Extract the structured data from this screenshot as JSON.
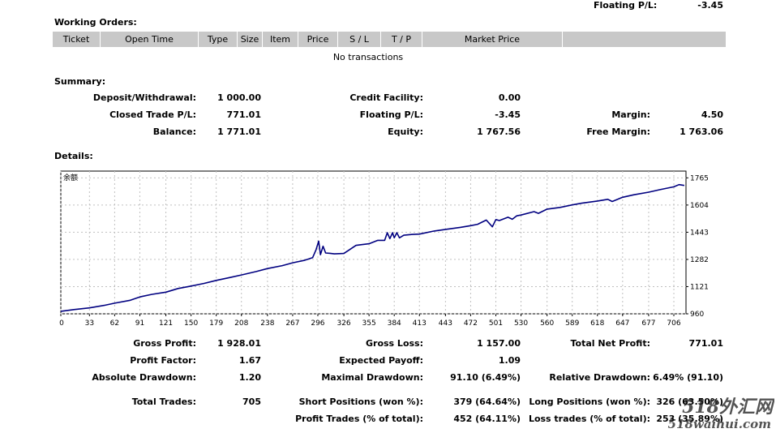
{
  "top": {
    "floating_label": "Floating P/L:",
    "floating_value": "-3.45"
  },
  "working_orders": {
    "title": "Working Orders:",
    "columns": [
      "Ticket",
      "Open Time",
      "Type",
      "Size",
      "Item",
      "Price",
      "S / L",
      "T / P",
      "Market Price",
      ""
    ],
    "empty_text": "No transactions"
  },
  "summary": {
    "title": "Summary:",
    "deposit_label": "Deposit/Withdrawal:",
    "deposit_value": "1 000.00",
    "credit_label": "Credit Facility:",
    "credit_value": "0.00",
    "closed_label": "Closed Trade P/L:",
    "closed_value": "771.01",
    "floating_label": "Floating P/L:",
    "floating_value": "-3.45",
    "margin_label": "Margin:",
    "margin_value": "4.50",
    "balance_label": "Balance:",
    "balance_value": "1 771.01",
    "equity_label": "Equity:",
    "equity_value": "1 767.56",
    "free_margin_label": "Free Margin:",
    "free_margin_value": "1 763.06"
  },
  "details": {
    "title": "Details:",
    "gross_profit_label": "Gross Profit:",
    "gross_profit_value": "1 928.01",
    "gross_loss_label": "Gross Loss:",
    "gross_loss_value": "1 157.00",
    "total_net_label": "Total Net Profit:",
    "total_net_value": "771.01",
    "profit_factor_label": "Profit Factor:",
    "profit_factor_value": "1.67",
    "expected_payoff_label": "Expected Payoff:",
    "expected_payoff_value": "1.09",
    "abs_dd_label": "Absolute Drawdown:",
    "abs_dd_value": "1.20",
    "max_dd_label": "Maximal Drawdown:",
    "max_dd_value": "91.10 (6.49%)",
    "rel_dd_label": "Relative Drawdown:",
    "rel_dd_value": "6.49% (91.10)",
    "total_trades_label": "Total Trades:",
    "total_trades_value": "705",
    "short_label": "Short Positions (won %):",
    "short_value": "379 (64.64%)",
    "long_label": "Long Positions (won %):",
    "long_value": "326 (63.50%)",
    "profit_trades_label": "Profit Trades (% of total):",
    "profit_trades_value": "452 (64.11%)",
    "loss_trades_label": "Loss trades (% of total):",
    "loss_trades_value": "253 (35.89%)"
  },
  "watermark": {
    "line1": "518外汇网",
    "line2": "518waihui.com"
  },
  "colors": {
    "line": "#000080",
    "grid": "#c0c0c0",
    "header_bg": "#c8c8c8"
  },
  "chart_data": {
    "type": "line",
    "title": "余额",
    "x_ticks": [
      0,
      33,
      62,
      91,
      121,
      150,
      179,
      208,
      238,
      267,
      296,
      326,
      355,
      384,
      413,
      443,
      472,
      501,
      530,
      560,
      589,
      618,
      647,
      677,
      706
    ],
    "y_ticks": [
      960,
      1121,
      1282,
      1443,
      1604,
      1765
    ],
    "xlim": [
      0,
      720
    ],
    "ylim": [
      960,
      1805
    ],
    "grid": true,
    "series": [
      {
        "x": [
          0,
          15,
          33,
          50,
          62,
          80,
          91,
          105,
          121,
          135,
          150,
          165,
          179,
          195,
          208,
          225,
          238,
          255,
          267,
          280,
          290,
          294,
          297,
          299,
          302,
          305,
          310,
          315,
          326,
          340,
          355,
          365,
          370,
          373,
          376,
          379,
          382,
          384,
          387,
          390,
          395,
          405,
          413,
          430,
          443,
          460,
          472,
          480,
          490,
          497,
          501,
          505,
          515,
          520,
          525,
          530,
          545,
          550,
          560,
          575,
          589,
          600,
          618,
          630,
          635,
          647,
          660,
          677,
          690,
          706,
          712,
          718
        ],
        "y": [
          975,
          985,
          995,
          1010,
          1023,
          1040,
          1060,
          1075,
          1088,
          1110,
          1124,
          1140,
          1158,
          1175,
          1190,
          1210,
          1228,
          1245,
          1262,
          1276,
          1292,
          1340,
          1390,
          1310,
          1360,
          1320,
          1318,
          1315,
          1317,
          1365,
          1375,
          1395,
          1395,
          1395,
          1440,
          1405,
          1440,
          1410,
          1440,
          1410,
          1425,
          1430,
          1432,
          1450,
          1460,
          1472,
          1482,
          1490,
          1515,
          1475,
          1518,
          1512,
          1532,
          1520,
          1540,
          1545,
          1565,
          1555,
          1580,
          1590,
          1605,
          1615,
          1628,
          1638,
          1625,
          1650,
          1665,
          1680,
          1695,
          1712,
          1725,
          1720
        ]
      }
    ]
  }
}
